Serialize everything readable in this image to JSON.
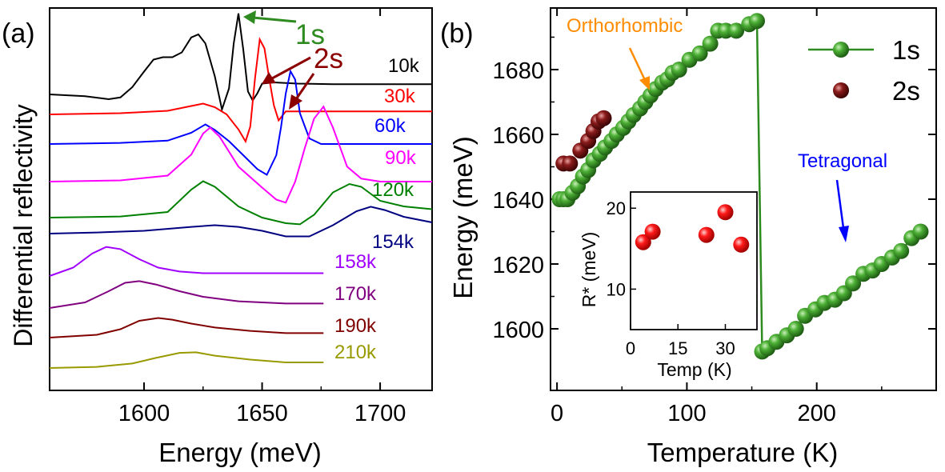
{
  "chart_data": [
    {
      "type": "line",
      "panel_label": "(a)",
      "title": "",
      "xlabel": "Energy (meV)",
      "ylabel": "Differential reflectivity",
      "xlim": [
        1560,
        1722
      ],
      "xticks": [
        1600,
        1650,
        1700
      ],
      "series": [
        {
          "name": "10k",
          "color": "#000000",
          "x": [
            1560,
            1575,
            1585,
            1590,
            1595,
            1600,
            1604,
            1608,
            1612,
            1616,
            1620,
            1623,
            1626,
            1630,
            1633,
            1636,
            1638,
            1640,
            1642,
            1644,
            1646,
            1648,
            1650,
            1655,
            1665,
            1680,
            1700,
            1722
          ],
          "values": [
            0.0,
            -0.03,
            -0.08,
            -0.05,
            0.12,
            0.38,
            0.58,
            0.62,
            0.62,
            0.7,
            0.95,
            1.0,
            0.85,
            0.3,
            -0.25,
            0.1,
            0.85,
            1.35,
            0.75,
            0.05,
            -0.1,
            0.02,
            0.18,
            0.2,
            0.18,
            0.17,
            0.17,
            0.17
          ]
        },
        {
          "name": "30k",
          "color": "#ff0000",
          "x": [
            1560,
            1590,
            1610,
            1620,
            1625,
            1630,
            1635,
            1640,
            1643,
            1645,
            1647,
            1649,
            1651,
            1653,
            1655,
            1657,
            1660,
            1665,
            1680,
            1700,
            1722
          ],
          "values": [
            0.0,
            0.02,
            0.06,
            0.14,
            0.18,
            0.12,
            0.0,
            -0.25,
            -0.45,
            -0.2,
            0.6,
            1.25,
            1.1,
            0.6,
            0.15,
            -0.1,
            0.05,
            0.05,
            0.05,
            0.05,
            0.05
          ]
        },
        {
          "name": "60k",
          "color": "#0000ff",
          "x": [
            1560,
            1590,
            1610,
            1620,
            1626,
            1630,
            1636,
            1642,
            1648,
            1652,
            1656,
            1658,
            1660,
            1662,
            1664,
            1666,
            1670,
            1675,
            1680,
            1700,
            1722
          ],
          "values": [
            0.0,
            0.02,
            0.06,
            0.2,
            0.35,
            0.25,
            0.05,
            -0.2,
            -0.45,
            -0.55,
            -0.2,
            0.3,
            0.9,
            1.3,
            1.15,
            0.55,
            0.1,
            0.0,
            0.0,
            0.0,
            0.0
          ]
        },
        {
          "name": "90k",
          "color": "#ff00ff",
          "x": [
            1560,
            1590,
            1610,
            1620,
            1625,
            1628,
            1632,
            1640,
            1650,
            1656,
            1660,
            1664,
            1668,
            1672,
            1676,
            1680,
            1686,
            1692,
            1700,
            1722
          ],
          "values": [
            0.0,
            0.02,
            0.1,
            0.45,
            0.8,
            0.9,
            0.75,
            0.25,
            -0.1,
            -0.3,
            -0.35,
            0.0,
            0.55,
            1.05,
            1.25,
            0.9,
            0.25,
            0.05,
            0.0,
            0.0
          ]
        },
        {
          "name": "120k",
          "color": "#008000",
          "x": [
            1560,
            1590,
            1610,
            1620,
            1625,
            1630,
            1640,
            1650,
            1660,
            1666,
            1672,
            1680,
            1687,
            1692,
            1700,
            1710,
            1722
          ],
          "values": [
            0.0,
            0.02,
            0.1,
            0.5,
            0.65,
            0.55,
            0.2,
            0.0,
            -0.1,
            -0.12,
            0.05,
            0.45,
            0.6,
            0.55,
            0.3,
            0.2,
            0.15
          ]
        },
        {
          "name": "154k",
          "color": "#000080",
          "x": [
            1560,
            1580,
            1600,
            1620,
            1630,
            1640,
            1650,
            1660,
            1670,
            1680,
            1690,
            1696,
            1702,
            1710,
            1722
          ],
          "values": [
            0.0,
            0.02,
            0.05,
            0.12,
            0.15,
            0.12,
            0.05,
            -0.05,
            -0.05,
            0.15,
            0.4,
            0.48,
            0.42,
            0.3,
            0.2
          ]
        },
        {
          "name": "158k",
          "color": "#a000ff",
          "x": [
            1560,
            1570,
            1578,
            1584,
            1590,
            1598,
            1606,
            1615,
            1625,
            1640,
            1660,
            1676
          ],
          "values": [
            0.0,
            0.15,
            0.4,
            0.52,
            0.48,
            0.3,
            0.15,
            0.08,
            0.05,
            0.05,
            0.05,
            0.05
          ]
        },
        {
          "name": "170k",
          "color": "#800080",
          "x": [
            1560,
            1575,
            1585,
            1592,
            1598,
            1605,
            1615,
            1625,
            1640,
            1660,
            1676
          ],
          "values": [
            0.0,
            0.1,
            0.3,
            0.45,
            0.48,
            0.42,
            0.3,
            0.2,
            0.12,
            0.08,
            0.08
          ]
        },
        {
          "name": "190k",
          "color": "#800000",
          "x": [
            1560,
            1580,
            1590,
            1598,
            1606,
            1612,
            1620,
            1630,
            1645,
            1660,
            1676
          ],
          "values": [
            0.0,
            0.05,
            0.15,
            0.3,
            0.35,
            0.32,
            0.25,
            0.18,
            0.12,
            0.08,
            0.08
          ]
        },
        {
          "name": "210k",
          "color": "#999900",
          "x": [
            1560,
            1580,
            1595,
            1605,
            1615,
            1622,
            1630,
            1645,
            1660,
            1676
          ],
          "values": [
            0.0,
            0.02,
            0.08,
            0.18,
            0.27,
            0.28,
            0.22,
            0.15,
            0.1,
            0.1
          ]
        }
      ],
      "annotations": [
        {
          "text": "1s",
          "color": "#008000"
        },
        {
          "text": "2s",
          "color": "#800000"
        }
      ]
    },
    {
      "type": "scatter",
      "panel_label": "(b)",
      "title": "",
      "xlabel": "Temperature (K)",
      "ylabel": "Energy (meV)",
      "xlim": [
        -5,
        292
      ],
      "ylim": [
        1581,
        1699
      ],
      "xticks": [
        0,
        100,
        200
      ],
      "yticks": [
        1600,
        1620,
        1640,
        1660,
        1680
      ],
      "legend_position": "top-right",
      "series": [
        {
          "name": "1s",
          "color": "#2e8b1f",
          "x": [
            2,
            5,
            8,
            12,
            16,
            20,
            24,
            28,
            33,
            37,
            42,
            46,
            51,
            55,
            59,
            64,
            68,
            72,
            76,
            81,
            85,
            89,
            94,
            102,
            110,
            118,
            124,
            130,
            138,
            148,
            154,
            158,
            162,
            169,
            177,
            184,
            191,
            199,
            206,
            214,
            221,
            228,
            236,
            243,
            250,
            258,
            265,
            273,
            280
          ],
          "values": [
            1640,
            1640,
            1640,
            1642,
            1644,
            1647,
            1649,
            1652,
            1654,
            1656,
            1658,
            1660,
            1662,
            1664,
            1666,
            1668,
            1670,
            1672,
            1674,
            1676,
            1677,
            1679,
            1680,
            1683,
            1685,
            1688,
            1692,
            1692,
            1692,
            1694,
            1695,
            1593,
            1594,
            1596,
            1598,
            1600,
            1604,
            1606,
            1608,
            1609,
            1611,
            1614,
            1617,
            1618,
            1620,
            1622,
            1624,
            1628,
            1630
          ]
        },
        {
          "name": "2s",
          "color": "#7a1010",
          "x": [
            5,
            10,
            18,
            24,
            28,
            32,
            36
          ],
          "values": [
            1651,
            1651,
            1655,
            1658,
            1661,
            1664,
            1665
          ]
        }
      ],
      "annotations": [
        {
          "text": "Orthorhombic",
          "color": "#ff8c00"
        },
        {
          "text": "Tetragonal",
          "color": "#0000ff"
        }
      ],
      "inset": {
        "type": "scatter",
        "xlabel": "Temp (K)",
        "ylabel": "R* (meV)",
        "xlim": [
          0,
          40
        ],
        "ylim": [
          5,
          22
        ],
        "xticks": [
          0,
          15,
          30
        ],
        "yticks": [
          10,
          20
        ],
        "color": "#ff0000",
        "x": [
          4,
          7,
          24,
          30,
          35
        ],
        "values": [
          15.8,
          17.1,
          16.7,
          19.5,
          15.5
        ]
      }
    }
  ]
}
